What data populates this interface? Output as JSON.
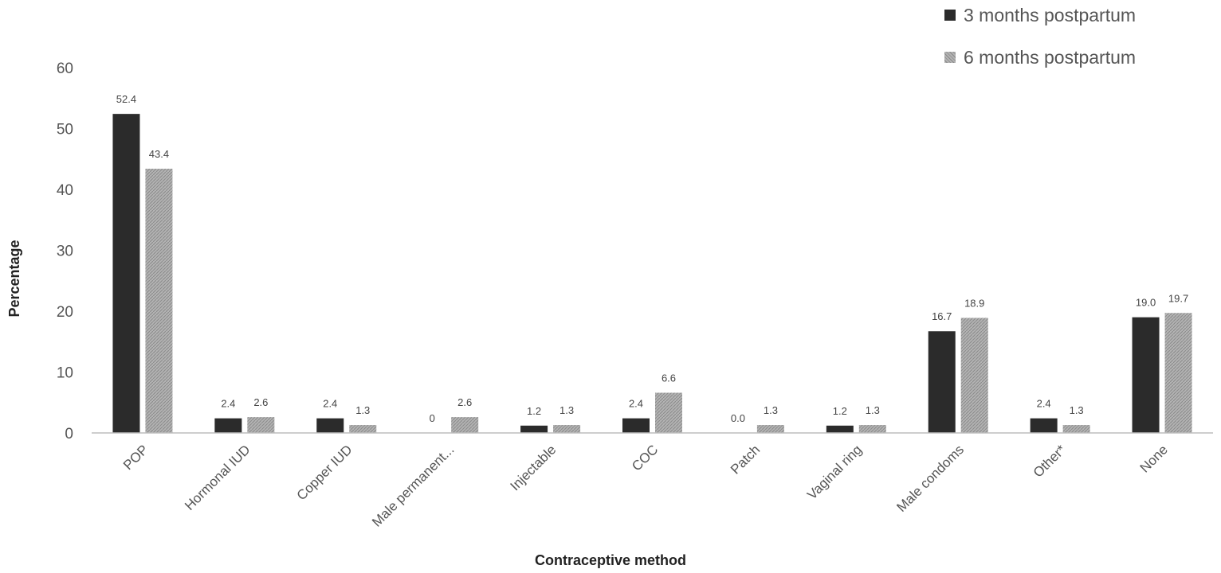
{
  "chart_data": {
    "type": "bar",
    "categories": [
      "POP",
      "Hormonal IUD",
      "Copper IUD",
      "Male permanent...",
      "Injectable",
      "COC",
      "Patch",
      "Vaginal ring",
      "Male condoms",
      "Other*",
      "None"
    ],
    "series": [
      {
        "name": "3 months postpartum",
        "values": [
          52.4,
          2.4,
          2.4,
          0,
          1.2,
          2.4,
          0.0,
          1.2,
          16.7,
          2.4,
          19.0
        ],
        "labels": [
          "52.4",
          "2.4",
          "2.4",
          "0",
          "1.2",
          "2.4",
          "0.0",
          "1.2",
          "16.7",
          "2.4",
          "19.0"
        ],
        "color": "#2b2b2b"
      },
      {
        "name": "6 months postpartum",
        "values": [
          43.4,
          2.6,
          1.3,
          2.6,
          1.3,
          6.6,
          1.3,
          1.3,
          18.9,
          1.3,
          19.7
        ],
        "labels": [
          "43.4",
          "2.6",
          "1.3",
          "2.6",
          "1.3",
          "6.6",
          "1.3",
          "1.3",
          "18.9",
          "1.3",
          "19.7"
        ],
        "color": "#a8a8a8",
        "pattern": "hatched"
      }
    ],
    "xlabel": "Contraceptive method",
    "ylabel": "Percentage",
    "ylim": [
      0,
      60
    ],
    "yticks": [
      0,
      10,
      20,
      30,
      40,
      50,
      60
    ],
    "grid": false,
    "legend_position": "top-right"
  }
}
